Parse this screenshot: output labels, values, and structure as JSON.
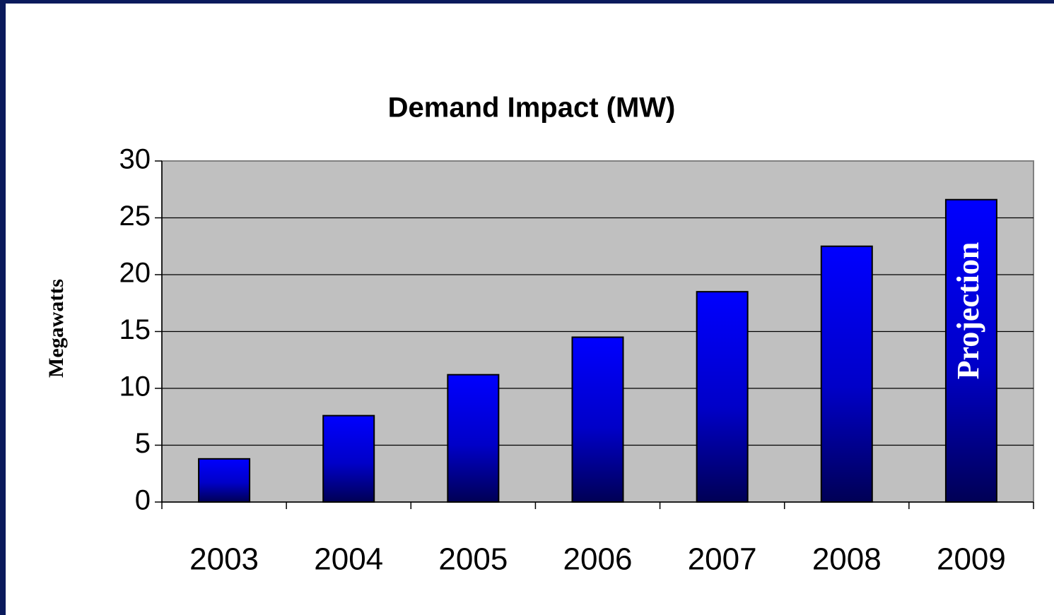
{
  "chart_data": {
    "type": "bar",
    "title": "Demand Impact (MW)",
    "y_label": "Megawatts",
    "categories": [
      "2003",
      "2004",
      "2005",
      "2006",
      "2007",
      "2008",
      "2009"
    ],
    "values": [
      3.8,
      7.6,
      11.2,
      14.5,
      18.5,
      22.5,
      26.6
    ],
    "color": "#0000ff",
    "annotation": "Projection",
    "ylim": [
      0,
      30
    ],
    "yticks": [
      0,
      5,
      10,
      15,
      20,
      25,
      30
    ],
    "grid": true
  }
}
